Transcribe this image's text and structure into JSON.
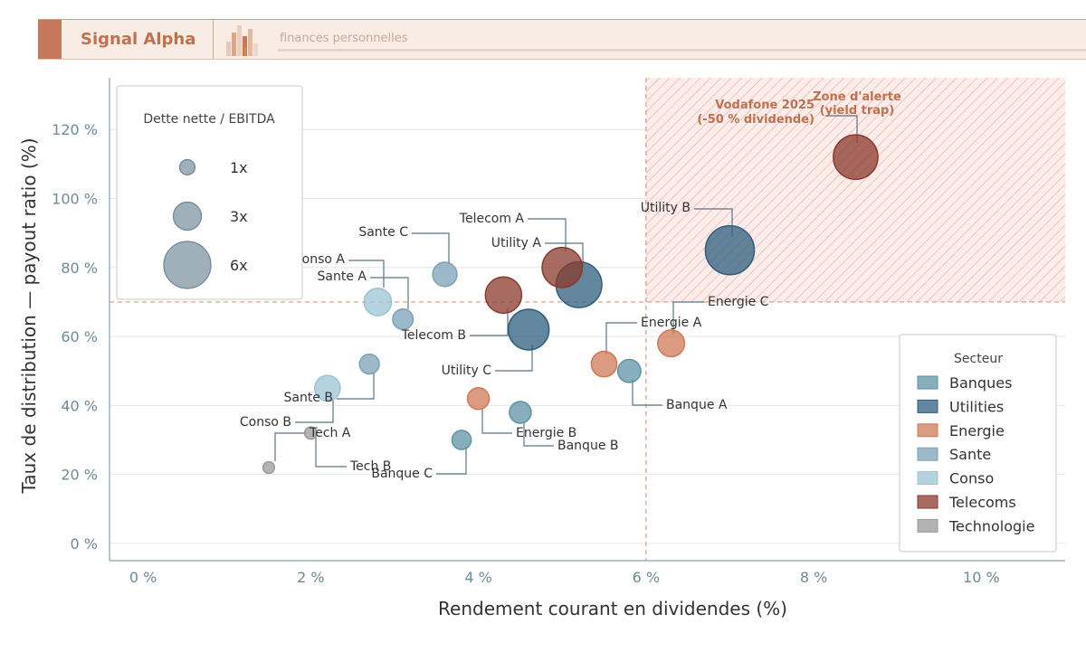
{
  "header": {
    "brand": "Signal Alpha",
    "tagline": "finances personnelles",
    "accent_color": "#c8785a"
  },
  "chart_data": {
    "type": "scatter",
    "xlabel": "Rendement courant en dividendes (%)",
    "ylabel": "Taux de distribution — payout ratio (%)",
    "xlim": [
      -0.4,
      11.0
    ],
    "ylim": [
      -5,
      135
    ],
    "x_ticks": [
      0,
      2,
      4,
      6,
      8,
      10
    ],
    "x_tick_labels": [
      "0 %",
      "2 %",
      "4 %",
      "6 %",
      "8 %",
      "10 %"
    ],
    "y_ticks": [
      0,
      20,
      40,
      60,
      80,
      100,
      120
    ],
    "y_tick_labels": [
      "0 %",
      "20 %",
      "40 %",
      "60 %",
      "80 %",
      "100 %",
      "120 %"
    ],
    "grid": "horizontal",
    "thresholds": {
      "x": 6,
      "y": 70
    },
    "zone": {
      "x_from": 6,
      "y_from": 70,
      "label_lines": [
        "Zone d'alerte",
        "(yield trap)"
      ]
    },
    "size_legend": {
      "title": "Dette nette / EBITDA",
      "entries": [
        {
          "label": "1x",
          "value": 1
        },
        {
          "label": "3x",
          "value": 3
        },
        {
          "label": "6x",
          "value": 6
        }
      ]
    },
    "sector_legend": {
      "title": "Secteur",
      "position": "bottom-right",
      "entries": [
        {
          "name": "Banques",
          "color": "#5f93a6"
        },
        {
          "name": "Utilities",
          "color": "#2f5f7f"
        },
        {
          "name": "Energie",
          "color": "#cd7a56"
        },
        {
          "name": "Sante",
          "color": "#7aa2b6"
        },
        {
          "name": "Conso",
          "color": "#9cc3d4"
        },
        {
          "name": "Telecoms",
          "color": "#8a3a2c"
        },
        {
          "name": "Technologie",
          "color": "#9a9a9a"
        }
      ]
    },
    "points": [
      {
        "label": "Banque A",
        "sector": "Banques",
        "x": 5.8,
        "y": 50,
        "debt": 2.2
      },
      {
        "label": "Banque B",
        "sector": "Banques",
        "x": 4.5,
        "y": 38,
        "debt": 2.0
      },
      {
        "label": "Banque C",
        "sector": "Banques",
        "x": 3.8,
        "y": 30,
        "debt": 1.6
      },
      {
        "label": "Utility A",
        "sector": "Utilities",
        "x": 5.2,
        "y": 75,
        "debt": 5.8
      },
      {
        "label": "Utility B",
        "sector": "Utilities",
        "x": 7.0,
        "y": 85,
        "debt": 6.3
      },
      {
        "label": "Utility C",
        "sector": "Utilities",
        "x": 4.6,
        "y": 62,
        "debt": 5.0
      },
      {
        "label": "Energie A",
        "sector": "Energie",
        "x": 5.5,
        "y": 52,
        "debt": 2.6
      },
      {
        "label": "Energie B",
        "sector": "Energie",
        "x": 4.0,
        "y": 42,
        "debt": 2.0
      },
      {
        "label": "Energie C",
        "sector": "Energie",
        "x": 6.3,
        "y": 58,
        "debt": 2.8
      },
      {
        "label": "Sante A",
        "sector": "Sante",
        "x": 3.1,
        "y": 65,
        "debt": 1.8
      },
      {
        "label": "Sante B",
        "sector": "Sante",
        "x": 2.7,
        "y": 52,
        "debt": 1.7
      },
      {
        "label": "Sante C",
        "sector": "Sante",
        "x": 3.6,
        "y": 78,
        "debt": 2.4
      },
      {
        "label": "Conso A",
        "sector": "Conso",
        "x": 2.8,
        "y": 70,
        "debt": 2.9
      },
      {
        "label": "Conso B",
        "sector": "Conso",
        "x": 2.2,
        "y": 45,
        "debt": 2.6
      },
      {
        "label": "Telecom A",
        "sector": "Telecoms",
        "x": 5.0,
        "y": 80,
        "debt": 4.9
      },
      {
        "label": "Telecom B",
        "sector": "Telecoms",
        "x": 4.3,
        "y": 72,
        "debt": 4.3
      },
      {
        "label": "Vodafone 2025",
        "sector": "Telecoms",
        "x": 8.5,
        "y": 112,
        "debt": 5.6
      },
      {
        "label": "Tech A",
        "sector": "Technologie",
        "x": 2.0,
        "y": 32,
        "debt": 0.5
      },
      {
        "label": "Tech B",
        "sector": "Technologie",
        "x": 1.5,
        "y": 22,
        "debt": 0.4
      }
    ],
    "annotations": [
      {
        "point": 12,
        "text": "Conso A"
      },
      {
        "point": 9,
        "text": "Sante A"
      },
      {
        "point": 11,
        "text": "Sante C"
      },
      {
        "point": 14,
        "text": "Telecom A"
      },
      {
        "point": 3,
        "text": "Utility A"
      },
      {
        "point": 4,
        "text": "Utility B"
      },
      {
        "point": 15,
        "text": "Telecom B"
      },
      {
        "point": 5,
        "text": "Utility C"
      },
      {
        "point": 8,
        "text": "Energie C"
      },
      {
        "point": 6,
        "text": "Energie A"
      },
      {
        "point": 0,
        "text": "Banque A"
      },
      {
        "point": 10,
        "text": "Sante B"
      },
      {
        "point": 13,
        "text": "Conso B"
      },
      {
        "point": 17,
        "text": "Tech A"
      },
      {
        "point": 7,
        "text": "Energie B"
      },
      {
        "point": 1,
        "text": "Banque B"
      },
      {
        "point": 18,
        "text": "Tech B"
      },
      {
        "point": 2,
        "text": "Banque C"
      },
      {
        "point": 16,
        "text_lines": [
          "Vodafone 2025",
          "(-50 % dividende)"
        ]
      }
    ]
  }
}
